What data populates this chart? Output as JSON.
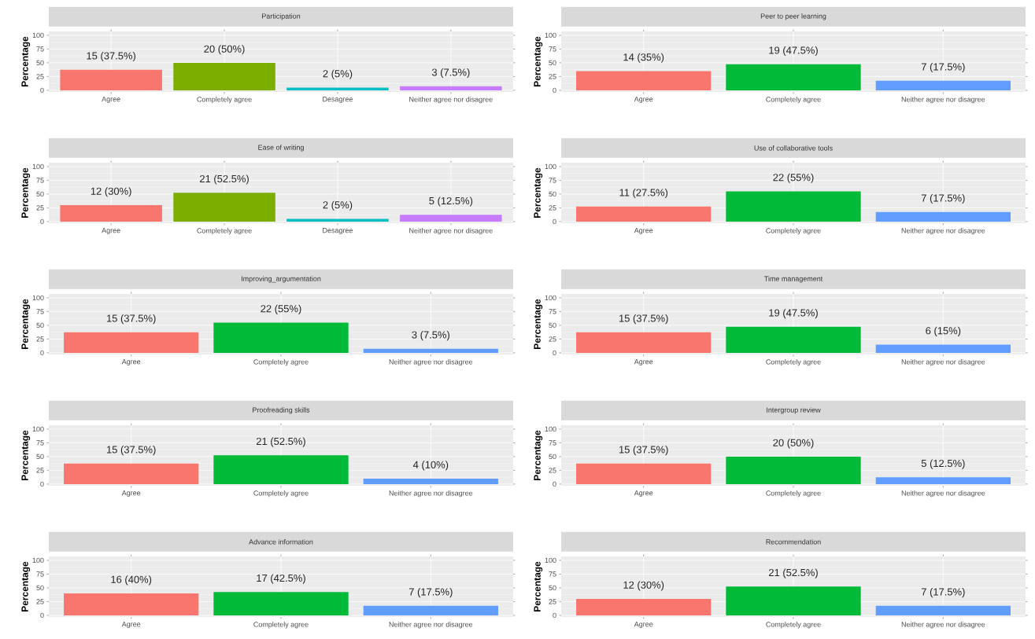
{
  "chart_data": [
    {
      "type": "bar",
      "title": "Participation",
      "ylabel": "Percentage",
      "categories": [
        "Agree",
        "Completely agree",
        "Desagree",
        "Neither agree nor disagree"
      ],
      "values": [
        37.5,
        50,
        5,
        7.5
      ],
      "colors": [
        "#F8766D",
        "#7CAE00",
        "#00BFC4",
        "#C77CFF"
      ],
      "value_labels": [
        "15 (37.5%)",
        "20 (50%)",
        "2 (5%)",
        "3 (7.5%)"
      ],
      "ylim": [
        -3,
        107
      ],
      "yticks": [
        0,
        25,
        50,
        75,
        100
      ],
      "grid": true
    },
    {
      "type": "bar",
      "title": "Peer to peer learning",
      "ylabel": "Percentage",
      "categories": [
        "Agree",
        "Completely agree",
        "Neither agree nor disagree"
      ],
      "values": [
        35,
        47.5,
        17.5
      ],
      "colors": [
        "#F8766D",
        "#00BA38",
        "#619CFF"
      ],
      "value_labels": [
        "14 (35%)",
        "19 (47.5%)",
        "7 (17.5%)"
      ],
      "ylim": [
        -3,
        107
      ],
      "yticks": [
        0,
        25,
        50,
        75,
        100
      ],
      "grid": true
    },
    {
      "type": "bar",
      "title": "Ease of writing",
      "ylabel": "Percentage",
      "categories": [
        "Agree",
        "Completely agree",
        "Desagree",
        "Neither agree nor disagree"
      ],
      "values": [
        30,
        52.5,
        5,
        12.5
      ],
      "colors": [
        "#F8766D",
        "#7CAE00",
        "#00BFC4",
        "#C77CFF"
      ],
      "value_labels": [
        "12 (30%)",
        "21 (52.5%)",
        "2 (5%)",
        "5 (12.5%)"
      ],
      "ylim": [
        -3,
        107
      ],
      "yticks": [
        0,
        25,
        50,
        75,
        100
      ],
      "grid": true
    },
    {
      "type": "bar",
      "title": "Use of collaborative tools",
      "ylabel": "Percentage",
      "categories": [
        "Agree",
        "Completely agree",
        "Neither agree nor disagree"
      ],
      "values": [
        27.5,
        55,
        17.5
      ],
      "colors": [
        "#F8766D",
        "#00BA38",
        "#619CFF"
      ],
      "value_labels": [
        "11 (27.5%)",
        "22 (55%)",
        "7 (17.5%)"
      ],
      "ylim": [
        -3,
        107
      ],
      "yticks": [
        0,
        25,
        50,
        75,
        100
      ],
      "grid": true
    },
    {
      "type": "bar",
      "title": "Improving_argumentation",
      "ylabel": "Percentage",
      "categories": [
        "Agree",
        "Completely agree",
        "Neither agree nor disagree"
      ],
      "values": [
        37.5,
        55,
        7.5
      ],
      "colors": [
        "#F8766D",
        "#00BA38",
        "#619CFF"
      ],
      "value_labels": [
        "15 (37.5%)",
        "22 (55%)",
        "3 (7.5%)"
      ],
      "ylim": [
        -3,
        107
      ],
      "yticks": [
        0,
        25,
        50,
        75,
        100
      ],
      "grid": true
    },
    {
      "type": "bar",
      "title": "Time management",
      "ylabel": "Percentage",
      "categories": [
        "Agree",
        "Completely agree",
        "Neither agree nor disagree"
      ],
      "values": [
        37.5,
        47.5,
        15
      ],
      "colors": [
        "#F8766D",
        "#00BA38",
        "#619CFF"
      ],
      "value_labels": [
        "15 (37.5%)",
        "19 (47.5%)",
        "6 (15%)"
      ],
      "ylim": [
        -3,
        107
      ],
      "yticks": [
        0,
        25,
        50,
        75,
        100
      ],
      "grid": true
    },
    {
      "type": "bar",
      "title": "Proofreading skills",
      "ylabel": "Percentage",
      "categories": [
        "Agree",
        "Completely agree",
        "Neither agree nor disagree"
      ],
      "values": [
        37.5,
        52.5,
        10
      ],
      "colors": [
        "#F8766D",
        "#00BA38",
        "#619CFF"
      ],
      "value_labels": [
        "15 (37.5%)",
        "21 (52.5%)",
        "4 (10%)"
      ],
      "ylim": [
        -3,
        107
      ],
      "yticks": [
        0,
        25,
        50,
        75,
        100
      ],
      "grid": true
    },
    {
      "type": "bar",
      "title": "Intergroup review",
      "ylabel": "Percentage",
      "categories": [
        "Agree",
        "Completely agree",
        "Neither agree nor disagree"
      ],
      "values": [
        37.5,
        50,
        12.5
      ],
      "colors": [
        "#F8766D",
        "#00BA38",
        "#619CFF"
      ],
      "value_labels": [
        "15 (37.5%)",
        "20 (50%)",
        "5 (12.5%)"
      ],
      "ylim": [
        -3,
        107
      ],
      "yticks": [
        0,
        25,
        50,
        75,
        100
      ],
      "grid": true
    },
    {
      "type": "bar",
      "title": "Advance information",
      "ylabel": "Percentage",
      "categories": [
        "Agree",
        "Completely agree",
        "Neither agree nor disagree"
      ],
      "values": [
        40,
        42.5,
        17.5
      ],
      "colors": [
        "#F8766D",
        "#00BA38",
        "#619CFF"
      ],
      "value_labels": [
        "16 (40%)",
        "17 (42.5%)",
        "7 (17.5%)"
      ],
      "ylim": [
        -3,
        107
      ],
      "yticks": [
        0,
        25,
        50,
        75,
        100
      ],
      "grid": true
    },
    {
      "type": "bar",
      "title": "Recommendation",
      "ylabel": "Percentage",
      "categories": [
        "Agree",
        "Completely agree",
        "Neither agree nor disagree"
      ],
      "values": [
        30,
        52.5,
        17.5
      ],
      "colors": [
        "#F8766D",
        "#00BA38",
        "#619CFF"
      ],
      "value_labels": [
        "12 (30%)",
        "21 (52.5%)",
        "7 (17.5%)"
      ],
      "ylim": [
        -3,
        107
      ],
      "yticks": [
        0,
        25,
        50,
        75,
        100
      ],
      "grid": true
    }
  ]
}
